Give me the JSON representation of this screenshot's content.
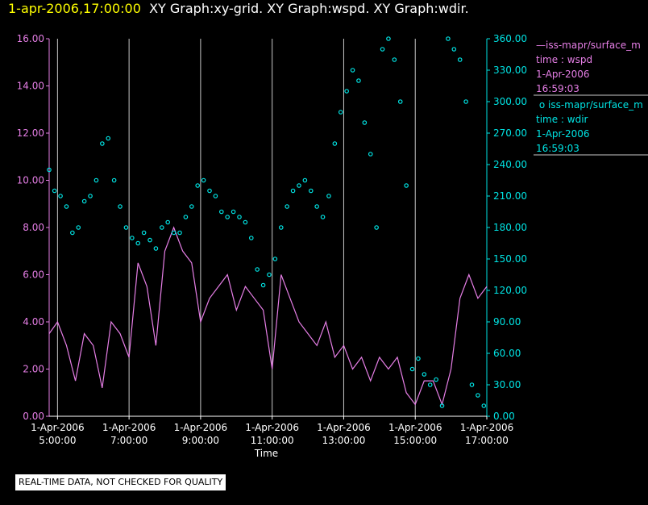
{
  "header": {
    "timestamp": "1-apr-2006,17:00:00",
    "graphs": "XY Graph:xy-grid.  XY Graph:wspd.  XY Graph:wdir."
  },
  "colors": {
    "background": "#000000",
    "wspd": "#e57ee5",
    "wdir": "#00e4e4",
    "grid": "#c8c8c8",
    "header_time": "#ffff00"
  },
  "legend": [
    {
      "marker": "line",
      "name": "iss-mapr/surface_m",
      "var": "time : wspd",
      "date": "1-Apr-2006",
      "time": "16:59:03"
    },
    {
      "marker": "circle",
      "name": "iss-mapr/surface_m",
      "var": "time : wdir",
      "date": "1-Apr-2006",
      "time": "16:59:03"
    }
  ],
  "quality_note": "REAL-TIME DATA, NOT CHECKED FOR QUALITY",
  "chart_data": {
    "type": "line",
    "xlabel": "Time",
    "x_range": [
      "2006-04-01 04:46",
      "2006-04-01 17:00"
    ],
    "x_tick_labels": [
      [
        "1-Apr-2006",
        "5:00:00"
      ],
      [
        "1-Apr-2006",
        "7:00:00"
      ],
      [
        "1-Apr-2006",
        "9:00:00"
      ],
      [
        "1-Apr-2006",
        "11:00:00"
      ],
      [
        "1-Apr-2006",
        "13:00:00"
      ],
      [
        "1-Apr-2006",
        "15:00:00"
      ],
      [
        "1-Apr-2006",
        "17:00:00"
      ]
    ],
    "y_left": {
      "min": 0,
      "max": 16,
      "ticks": [
        "0.00",
        "2.00",
        "4.00",
        "6.00",
        "8.00",
        "10.00",
        "12.00",
        "14.00",
        "16.00"
      ]
    },
    "y_right": {
      "min": 0,
      "max": 360,
      "ticks": [
        "0.00",
        "30.00",
        "60.00",
        "90.00",
        "120.00",
        "150.00",
        "180.00",
        "210.00",
        "240.00",
        "270.00",
        "300.00",
        "330.00",
        "360.00"
      ]
    },
    "grid": "vertical",
    "legend_position": "right",
    "series": [
      {
        "var": "wspd",
        "axis": "left",
        "style": "line",
        "x": [
          "04:46",
          "05:00",
          "05:15",
          "05:30",
          "05:45",
          "06:00",
          "06:15",
          "06:30",
          "06:45",
          "07:00",
          "07:15",
          "07:30",
          "07:45",
          "08:00",
          "08:15",
          "08:30",
          "08:45",
          "09:00",
          "09:15",
          "09:30",
          "09:45",
          "10:00",
          "10:15",
          "10:30",
          "10:45",
          "11:00",
          "11:15",
          "11:30",
          "11:45",
          "12:00",
          "12:15",
          "12:30",
          "12:45",
          "13:00",
          "13:15",
          "13:30",
          "13:45",
          "14:00",
          "14:15",
          "14:30",
          "14:45",
          "15:00",
          "15:15",
          "15:30",
          "15:45",
          "16:00",
          "16:15",
          "16:30",
          "16:45",
          "17:00"
        ],
        "values": [
          3.5,
          4.0,
          3.0,
          1.5,
          3.5,
          3.0,
          1.2,
          4.0,
          3.5,
          2.5,
          6.5,
          5.5,
          3.0,
          7.0,
          8.0,
          7.0,
          6.5,
          4.0,
          5.0,
          5.5,
          6.0,
          4.5,
          5.5,
          5.0,
          4.5,
          2.0,
          6.0,
          5.0,
          4.0,
          3.5,
          3.0,
          4.0,
          2.5,
          3.0,
          2.0,
          2.5,
          1.5,
          2.5,
          2.0,
          2.5,
          1.0,
          0.5,
          1.5,
          1.5,
          0.5,
          2.0,
          5.0,
          6.0,
          5.0,
          5.5
        ]
      },
      {
        "var": "wdir",
        "axis": "right",
        "style": "circle",
        "x": [
          "04:46",
          "04:55",
          "05:05",
          "05:15",
          "05:25",
          "05:35",
          "05:45",
          "05:55",
          "06:05",
          "06:15",
          "06:25",
          "06:35",
          "06:45",
          "06:55",
          "07:05",
          "07:15",
          "07:25",
          "07:35",
          "07:45",
          "07:55",
          "08:05",
          "08:15",
          "08:25",
          "08:35",
          "08:45",
          "08:55",
          "09:05",
          "09:15",
          "09:25",
          "09:35",
          "09:45",
          "09:55",
          "10:05",
          "10:15",
          "10:25",
          "10:35",
          "10:45",
          "10:55",
          "11:05",
          "11:15",
          "11:25",
          "11:35",
          "11:45",
          "11:55",
          "12:05",
          "12:15",
          "12:25",
          "12:35",
          "12:45",
          "12:55",
          "13:05",
          "13:15",
          "13:25",
          "13:35",
          "13:45",
          "13:55",
          "14:05",
          "14:15",
          "14:25",
          "14:35",
          "14:45",
          "14:55",
          "15:05",
          "15:15",
          "15:25",
          "15:35",
          "15:45",
          "15:55",
          "16:05",
          "16:15",
          "16:25",
          "16:35",
          "16:45",
          "16:55"
        ],
        "values": [
          235,
          215,
          210,
          200,
          175,
          180,
          205,
          210,
          225,
          260,
          265,
          225,
          200,
          180,
          170,
          165,
          175,
          168,
          160,
          180,
          185,
          175,
          175,
          190,
          200,
          220,
          225,
          215,
          210,
          195,
          190,
          195,
          190,
          185,
          170,
          140,
          125,
          135,
          150,
          180,
          200,
          215,
          220,
          225,
          215,
          200,
          190,
          210,
          260,
          290,
          310,
          330,
          320,
          280,
          250,
          180,
          350,
          360,
          340,
          300,
          220,
          45,
          55,
          40,
          30,
          35,
          10,
          360,
          350,
          340,
          300,
          30,
          20,
          10
        ]
      }
    ]
  }
}
